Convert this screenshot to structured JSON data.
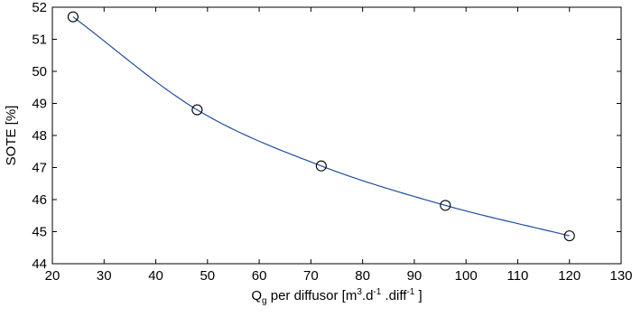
{
  "chart_data": {
    "type": "line",
    "title": "",
    "xlabel": "Q",
    "xlabel_subscript": "g",
    "xlabel_main": " per diffusor [m",
    "xlabel_sup1": "3",
    "xlabel_mid1": ".d",
    "xlabel_sup2": "-1",
    "xlabel_mid2": " .diff",
    "xlabel_sup3": "-1",
    "xlabel_end": " ]",
    "ylabel": "SOTE [%]",
    "xlim": [
      20,
      130
    ],
    "ylim": [
      44,
      52
    ],
    "xticks": [
      20,
      30,
      40,
      50,
      60,
      70,
      80,
      90,
      100,
      110,
      120,
      130
    ],
    "yticks": [
      44,
      45,
      46,
      47,
      48,
      49,
      50,
      51,
      52
    ],
    "grid": false,
    "series": [
      {
        "line_color": "#1f4e9c",
        "marker": "open-circle",
        "x": [
          24,
          48,
          72,
          96,
          120
        ],
        "values": [
          51.7,
          48.8,
          47.05,
          45.82,
          44.87
        ]
      }
    ]
  }
}
